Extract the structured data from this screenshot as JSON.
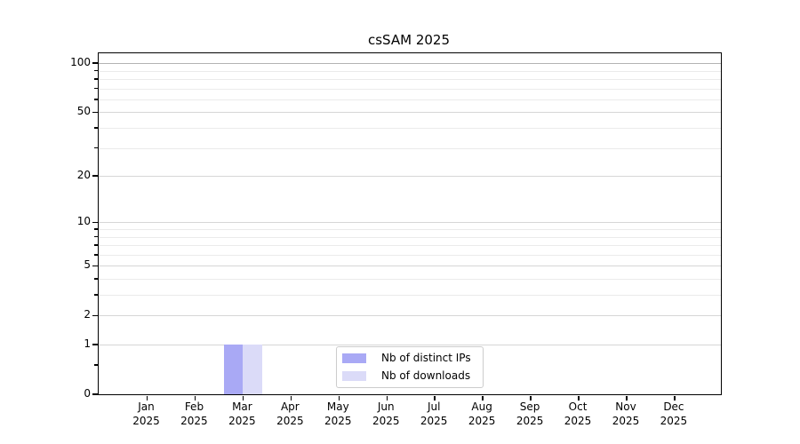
{
  "chart_data": {
    "type": "bar",
    "title": "csSAM 2025",
    "categories": [
      "Jan 2025",
      "Feb 2025",
      "Mar 2025",
      "Apr 2025",
      "May 2025",
      "Jun 2025",
      "Jul 2025",
      "Aug 2025",
      "Sep 2025",
      "Oct 2025",
      "Nov 2025",
      "Dec 2025"
    ],
    "series": [
      {
        "name": "Nb of distinct IPs",
        "color": "#a9a9f5",
        "values": [
          0,
          0,
          1,
          0,
          0,
          0,
          0,
          0,
          0,
          0,
          0,
          0
        ]
      },
      {
        "name": "Nb of downloads",
        "color": "#dbdbf8",
        "values": [
          0,
          0,
          1,
          0,
          0,
          0,
          0,
          0,
          0,
          0,
          0,
          0
        ]
      }
    ],
    "xlabel": "",
    "ylabel": "",
    "yscale": "log1p",
    "ylim": [
      0,
      115
    ],
    "yticks": [
      0,
      1,
      2,
      5,
      10,
      20,
      50,
      100
    ],
    "yticks_minor": [
      0.5,
      3,
      4,
      6,
      7,
      8,
      9,
      30,
      40,
      60,
      70,
      80,
      90
    ],
    "grid": "horizontal",
    "legend_position": "inside-bottom-center",
    "colors": {
      "grid_major": "#d6d6d6",
      "grid_top": "#b3b3b3",
      "grid_minor": "#ebebeb",
      "spine": "#000000",
      "background": "#ffffff"
    }
  }
}
